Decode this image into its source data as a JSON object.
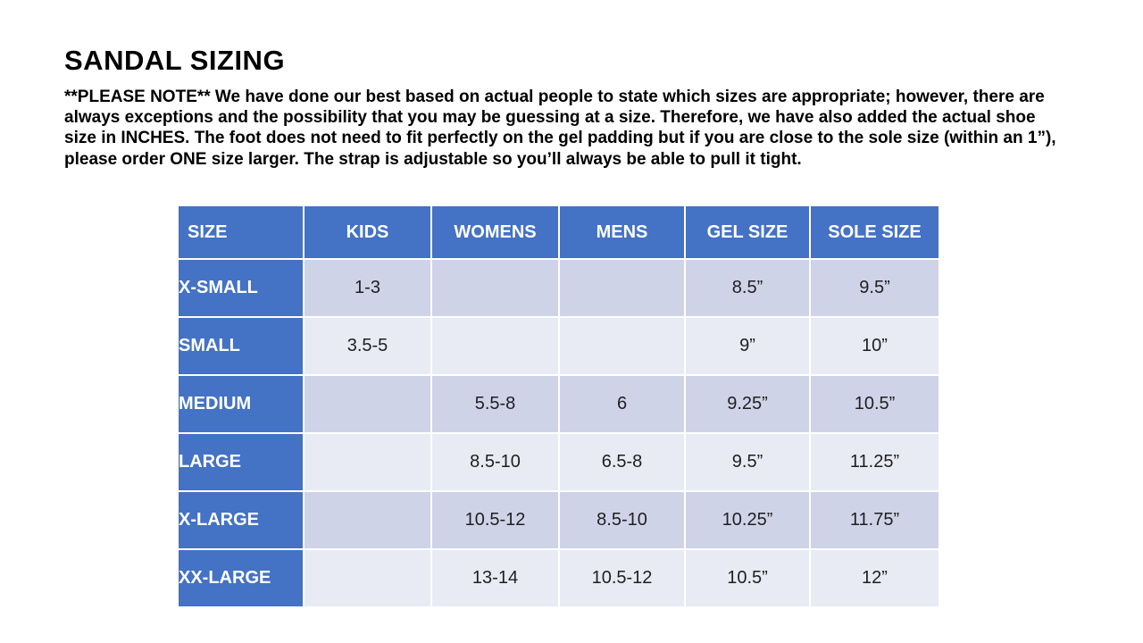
{
  "document": {
    "title": "SANDAL SIZING",
    "note": "**PLEASE NOTE**  We have done our best based on actual people to state which sizes are appropriate; however, there are always exceptions and the possibility that you may be guessing at a size.  Therefore, we have also added the actual shoe size in INCHES.  The foot does not need to fit perfectly on the gel padding but if you are close to the sole size (within an 1”), please order ONE size larger.  The strap is adjustable so you’ll always be able to pull it tight."
  },
  "table": {
    "headers": [
      "SIZE",
      "KIDS",
      "WOMENS",
      "MENS",
      "GEL SIZE",
      "SOLE SIZE"
    ],
    "rows": [
      [
        "X-SMALL",
        "1-3",
        "",
        "",
        "8.5”",
        "9.5”"
      ],
      [
        "SMALL",
        "3.5-5",
        "",
        "",
        "9”",
        "10”"
      ],
      [
        "MEDIUM",
        "",
        "5.5-8",
        "6",
        "9.25”",
        "10.5”"
      ],
      [
        "LARGE",
        "",
        "8.5-10",
        "6.5-8",
        "9.5”",
        "11.25”"
      ],
      [
        "X-LARGE",
        "",
        "10.5-12",
        "8.5-10",
        "10.25”",
        "11.75”"
      ],
      [
        "XX-LARGE",
        "",
        "13-14",
        "10.5-12",
        "10.5”",
        "12”"
      ]
    ],
    "colors": {
      "header_bg": "#4472C4",
      "row_label_bg": "#4472C4",
      "band_dark": "#CFD3E8",
      "band_light": "#E9EBF4",
      "grid": "#FFFFFF",
      "header_text": "#FFFFFF",
      "cell_text": "#1F1F1F"
    }
  }
}
